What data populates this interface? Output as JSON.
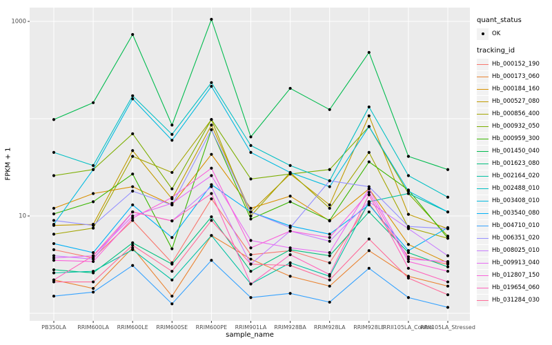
{
  "chart_data": {
    "type": "line",
    "title": "",
    "xlabel": "sample_name",
    "ylabel": "FPKM + 1",
    "y_scale": "log10",
    "y_tick_labels": [
      1000,
      10
    ],
    "y_gridlines": [
      1000,
      100,
      10,
      1
    ],
    "ylim": [
      0.8,
      1400
    ],
    "legend_position": "right",
    "panel_bg": "#EBEBEB",
    "grid_color": "#FFFFFF",
    "point_color": "#000000",
    "categories": [
      "PB350LA",
      "RRIM600LA",
      "RRIM600LE",
      "RRIM600SE",
      "RRIM600PE",
      "RRIM901LA",
      "RRIM928BA",
      "RRIM928LA",
      "RRIM928LE",
      "RRII105LA_Control",
      "RRII105LA_Stressed"
    ],
    "series": [
      {
        "name": "Hb_000152_190",
        "color": "#F8766D",
        "values": [
          4.5,
          3.7,
          9.0,
          3.3,
          15,
          4.0,
          4.4,
          3.3,
          13.5,
          3.8,
          3.2
        ]
      },
      {
        "name": "Hb_000173_060",
        "color": "#EA8331",
        "values": [
          2.2,
          1.8,
          4.7,
          1.5,
          6.3,
          3.6,
          2.4,
          1.9,
          4.4,
          2.4,
          1.9
        ]
      },
      {
        "name": "Hb_000184_160",
        "color": "#D89000",
        "values": [
          12,
          17,
          20,
          13,
          43,
          12,
          16,
          8.9,
          19,
          5.1,
          3.3
        ]
      },
      {
        "name": "Hb_000527_080",
        "color": "#C09B00",
        "values": [
          8.0,
          8.2,
          47,
          15,
          86,
          11,
          27,
          13,
          107,
          10.4,
          7.4
        ]
      },
      {
        "name": "Hb_000856_400",
        "color": "#A3A500",
        "values": [
          6.5,
          7.5,
          41,
          28,
          98,
          10,
          28,
          12,
          45,
          7.6,
          5.9
        ]
      },
      {
        "name": "Hb_000932_050",
        "color": "#7CAE00",
        "values": [
          26,
          30,
          70,
          19,
          98,
          24,
          27,
          30,
          83,
          17,
          6.2
        ]
      },
      {
        "name": "Hb_000959_300",
        "color": "#39B600",
        "values": [
          10.5,
          14,
          27,
          4.6,
          77,
          9.3,
          14,
          9.0,
          36,
          18.5,
          5.9
        ]
      },
      {
        "name": "Hb_001450_040",
        "color": "#00BB4E",
        "values": [
          98,
          146,
          733,
          86,
          1050,
          65,
          205,
          124,
          480,
          41,
          30
        ]
      },
      {
        "name": "Hb_001623_080",
        "color": "#00BF7D",
        "values": [
          2.8,
          2.6,
          5.3,
          3.2,
          9.8,
          2.7,
          4.5,
          3.9,
          11,
          4.2,
          3.0
        ]
      },
      {
        "name": "Hb_002164_020",
        "color": "#00C1A3",
        "values": [
          2.6,
          2.7,
          4.5,
          2.2,
          6.3,
          2.0,
          3.3,
          2.4,
          14,
          17,
          11
        ]
      },
      {
        "name": "Hb_002488_010",
        "color": "#00BFC4",
        "values": [
          45,
          33,
          172,
          69,
          235,
          53,
          33,
          23,
          132,
          26,
          15.6
        ]
      },
      {
        "name": "Hb_003408_010",
        "color": "#00BAE0",
        "values": [
          8.2,
          30,
          160,
          60,
          215,
          45,
          28,
          20,
          83,
          18,
          11
        ]
      },
      {
        "name": "Hb_003540_080",
        "color": "#00B0F6",
        "values": [
          5.2,
          4.2,
          13,
          6.0,
          21,
          11,
          7.9,
          6.5,
          13,
          4.4,
          7.6
        ]
      },
      {
        "name": "Hb_004710_010",
        "color": "#35A2FF",
        "values": [
          1.5,
          1.65,
          3.1,
          1.25,
          3.5,
          1.45,
          1.6,
          1.3,
          2.9,
          1.45,
          1.15
        ]
      },
      {
        "name": "Hb_006351_020",
        "color": "#9590FF",
        "values": [
          9.0,
          8.0,
          18,
          13,
          77,
          11,
          7.6,
          23,
          20,
          7.8,
          7.4
        ]
      },
      {
        "name": "Hb_008025_010",
        "color": "#C77CFF",
        "values": [
          3.9,
          3.6,
          11,
          8.9,
          20,
          3.2,
          7.0,
          5.5,
          14,
          7.4,
          3.9
        ]
      },
      {
        "name": "Hb_009913_040",
        "color": "#E76BF3",
        "values": [
          3.7,
          3.9,
          10,
          13.5,
          26,
          5.6,
          4.7,
          4.2,
          19,
          3.6,
          3.4
        ]
      },
      {
        "name": "Hb_012807_150",
        "color": "#FA62DB",
        "values": [
          3.5,
          3.4,
          9.5,
          15.5,
          31,
          4.7,
          7.0,
          6.0,
          17.5,
          3.4,
          2.7
        ]
      },
      {
        "name": "Hb_019654_060",
        "color": "#FF62BC",
        "values": [
          2.2,
          3.9,
          11,
          8.9,
          17,
          2.0,
          4.0,
          2.5,
          16.5,
          2.9,
          2.1
        ]
      },
      {
        "name": "Hb_031284_030",
        "color": "#FF6A98",
        "values": [
          2.1,
          2.1,
          5.0,
          2.7,
          9.0,
          3.2,
          3.1,
          2.2,
          5.8,
          2.3,
          1.55
        ]
      }
    ]
  },
  "legend": {
    "quant_status": {
      "title": "quant_status",
      "ok_label": "OK"
    },
    "tracking_id": {
      "title": "tracking_id"
    }
  }
}
